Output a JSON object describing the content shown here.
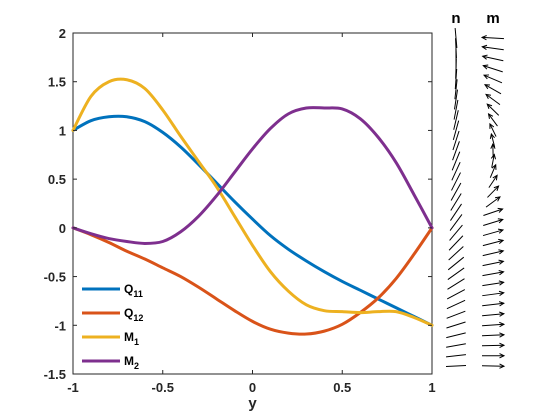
{
  "chart_data": {
    "type": "line",
    "xlabel": "y",
    "ylabel": "",
    "xlim": [
      -1,
      1
    ],
    "ylim": [
      -1.5,
      2
    ],
    "xticks": [
      {
        "value": -1,
        "label": "-1"
      },
      {
        "value": -0.5,
        "label": "-0.5"
      },
      {
        "value": 0,
        "label": "0"
      },
      {
        "value": 0.5,
        "label": "0.5"
      },
      {
        "value": 1,
        "label": "1"
      }
    ],
    "yticks": [
      {
        "value": -1.5,
        "label": "-1.5"
      },
      {
        "value": -1,
        "label": "-1"
      },
      {
        "value": -0.5,
        "label": "-0.5"
      },
      {
        "value": 0,
        "label": "0"
      },
      {
        "value": 0.5,
        "label": "0.5"
      },
      {
        "value": 1,
        "label": "1"
      },
      {
        "value": 1.5,
        "label": "1.5"
      },
      {
        "value": 2,
        "label": "2"
      }
    ],
    "grid": false,
    "legend_position": "bottom-left",
    "x": [
      -1,
      -0.9,
      -0.8,
      -0.7,
      -0.6,
      -0.5,
      -0.4,
      -0.3,
      -0.2,
      -0.1,
      0,
      0.1,
      0.2,
      0.3,
      0.4,
      0.5,
      0.6,
      0.7,
      0.8,
      0.9,
      1
    ],
    "series": [
      {
        "name": "Q",
        "subscript": "11",
        "color": "#0072BD",
        "values": [
          1.0,
          1.1,
          1.14,
          1.14,
          1.09,
          0.98,
          0.83,
          0.65,
          0.46,
          0.27,
          0.09,
          -0.08,
          -0.22,
          -0.34,
          -0.45,
          -0.55,
          -0.64,
          -0.73,
          -0.82,
          -0.91,
          -1.0
        ]
      },
      {
        "name": "Q",
        "subscript": "12",
        "color": "#D95319",
        "values": [
          0.0,
          -0.07,
          -0.15,
          -0.24,
          -0.32,
          -0.41,
          -0.5,
          -0.61,
          -0.73,
          -0.85,
          -0.96,
          -1.04,
          -1.08,
          -1.09,
          -1.06,
          -0.99,
          -0.87,
          -0.72,
          -0.52,
          -0.27,
          0.0
        ]
      },
      {
        "name": "M",
        "subscript": "1",
        "color": "#EDB120",
        "values": [
          1.0,
          1.35,
          1.5,
          1.52,
          1.43,
          1.21,
          0.94,
          0.68,
          0.42,
          0.12,
          -0.18,
          -0.45,
          -0.65,
          -0.79,
          -0.85,
          -0.86,
          -0.87,
          -0.86,
          -0.86,
          -0.92,
          -1.0
        ]
      },
      {
        "name": "M",
        "subscript": "2",
        "color": "#7E2F8E",
        "values": [
          0.0,
          -0.06,
          -0.11,
          -0.14,
          -0.16,
          -0.14,
          -0.04,
          0.12,
          0.33,
          0.57,
          0.81,
          1.02,
          1.17,
          1.23,
          1.23,
          1.22,
          1.12,
          0.93,
          0.67,
          0.34,
          0.0
        ]
      }
    ]
  },
  "side_panel": {
    "n_label": "n",
    "m_label": "m",
    "line_color": "#000000"
  }
}
